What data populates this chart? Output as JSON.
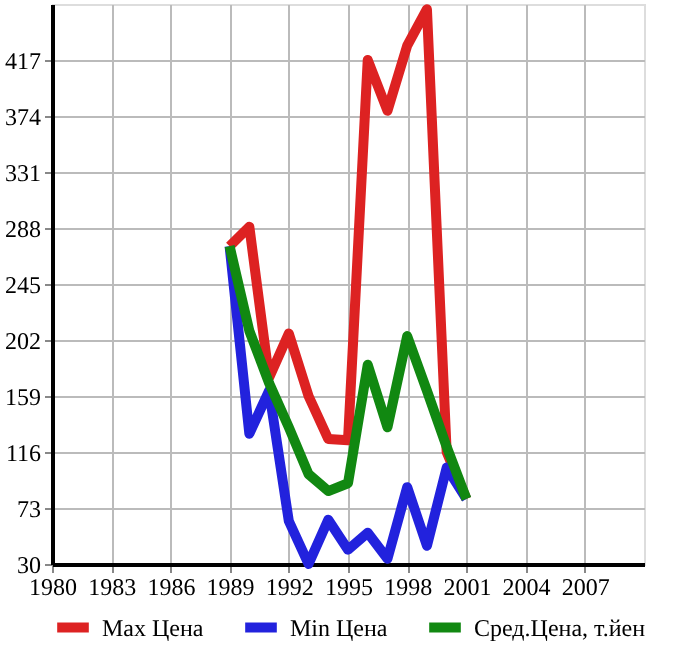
{
  "chart_data": {
    "type": "line",
    "x": [
      1989,
      1990,
      1991,
      1992,
      1993,
      1994,
      1995,
      1996,
      1997,
      1998,
      1999,
      2000,
      2001
    ],
    "series": [
      {
        "name": "Max Цена",
        "color": "#dd2222",
        "values": [
          274,
          289,
          173,
          207,
          159,
          126,
          125,
          417,
          378,
          428,
          456,
          116,
          80
        ]
      },
      {
        "name": "Min Цена",
        "color": "#2222dd",
        "values": [
          274,
          130,
          163,
          63,
          30,
          64,
          41,
          54,
          34,
          89,
          44,
          104,
          80
        ]
      },
      {
        "name": "Сред.Цена, т.йен",
        "color": "#118811",
        "values": [
          274,
          209,
          169,
          135,
          99,
          86,
          92,
          183,
          135,
          205,
          163,
          120,
          80
        ]
      }
    ],
    "xlim": [
      1980,
      2010
    ],
    "xticks": [
      1980,
      1983,
      1986,
      1989,
      1992,
      1995,
      1998,
      2001,
      2004,
      2007
    ],
    "ylim": [
      30,
      460
    ],
    "yticks": [
      30,
      73,
      116,
      159,
      202,
      245,
      288,
      331,
      374,
      417
    ],
    "grid": true,
    "legend": "bottom",
    "marker": "none",
    "line_style": "solid"
  }
}
